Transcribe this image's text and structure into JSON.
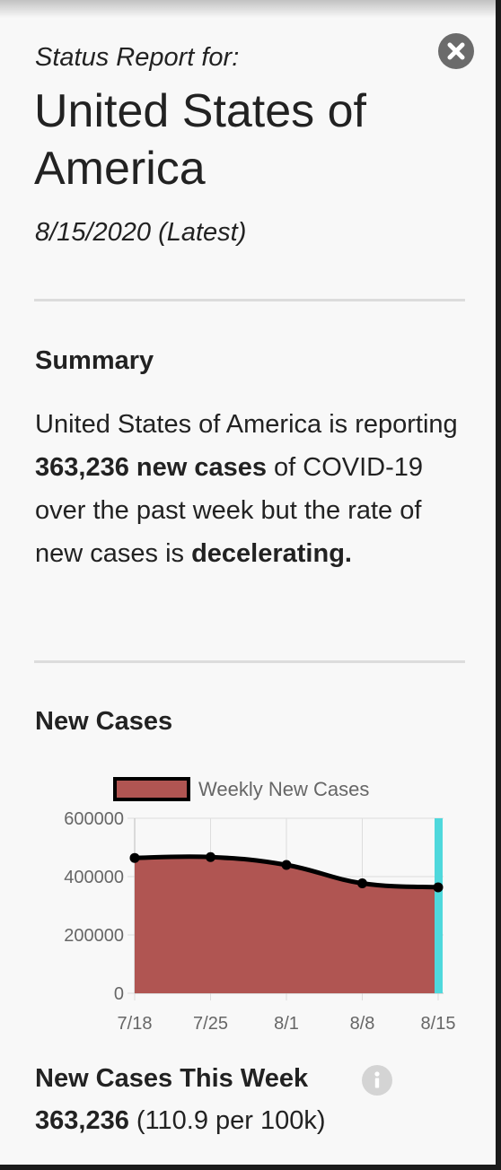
{
  "header": {
    "label": "Status Report for:",
    "country": "United States of America",
    "date": "8/15/2020 (Latest)",
    "close_icon": "close-icon"
  },
  "summary": {
    "title": "Summary",
    "text_before": "United States of America is reporting ",
    "highlight_cases": "363,236 new cases",
    "text_middle": " of COVID-19 over the past week but the rate of new cases is ",
    "highlight_trend": "decelerating."
  },
  "new_cases_section": {
    "title": "New Cases"
  },
  "chart_data": {
    "type": "area",
    "title": "",
    "xlabel": "",
    "ylabel": "",
    "categories": [
      "7/18",
      "7/25",
      "8/1",
      "8/8",
      "8/15"
    ],
    "series": [
      {
        "name": "Weekly New Cases",
        "values": [
          464000,
          467000,
          440000,
          377000,
          363236
        ],
        "fill": "#b05552",
        "line": "#000000"
      }
    ],
    "ylim": [
      0,
      600000
    ],
    "yticks": [
      "600000",
      "400000",
      "200000",
      "0"
    ],
    "grid": true,
    "legend": "top-center",
    "highlight_category": "8/15",
    "highlight_color": "#4fd8dc"
  },
  "stats": {
    "title": "New Cases This Week",
    "info_icon": "info-icon",
    "value": "363,236",
    "per_capita": "(110.9 per 100k)"
  }
}
